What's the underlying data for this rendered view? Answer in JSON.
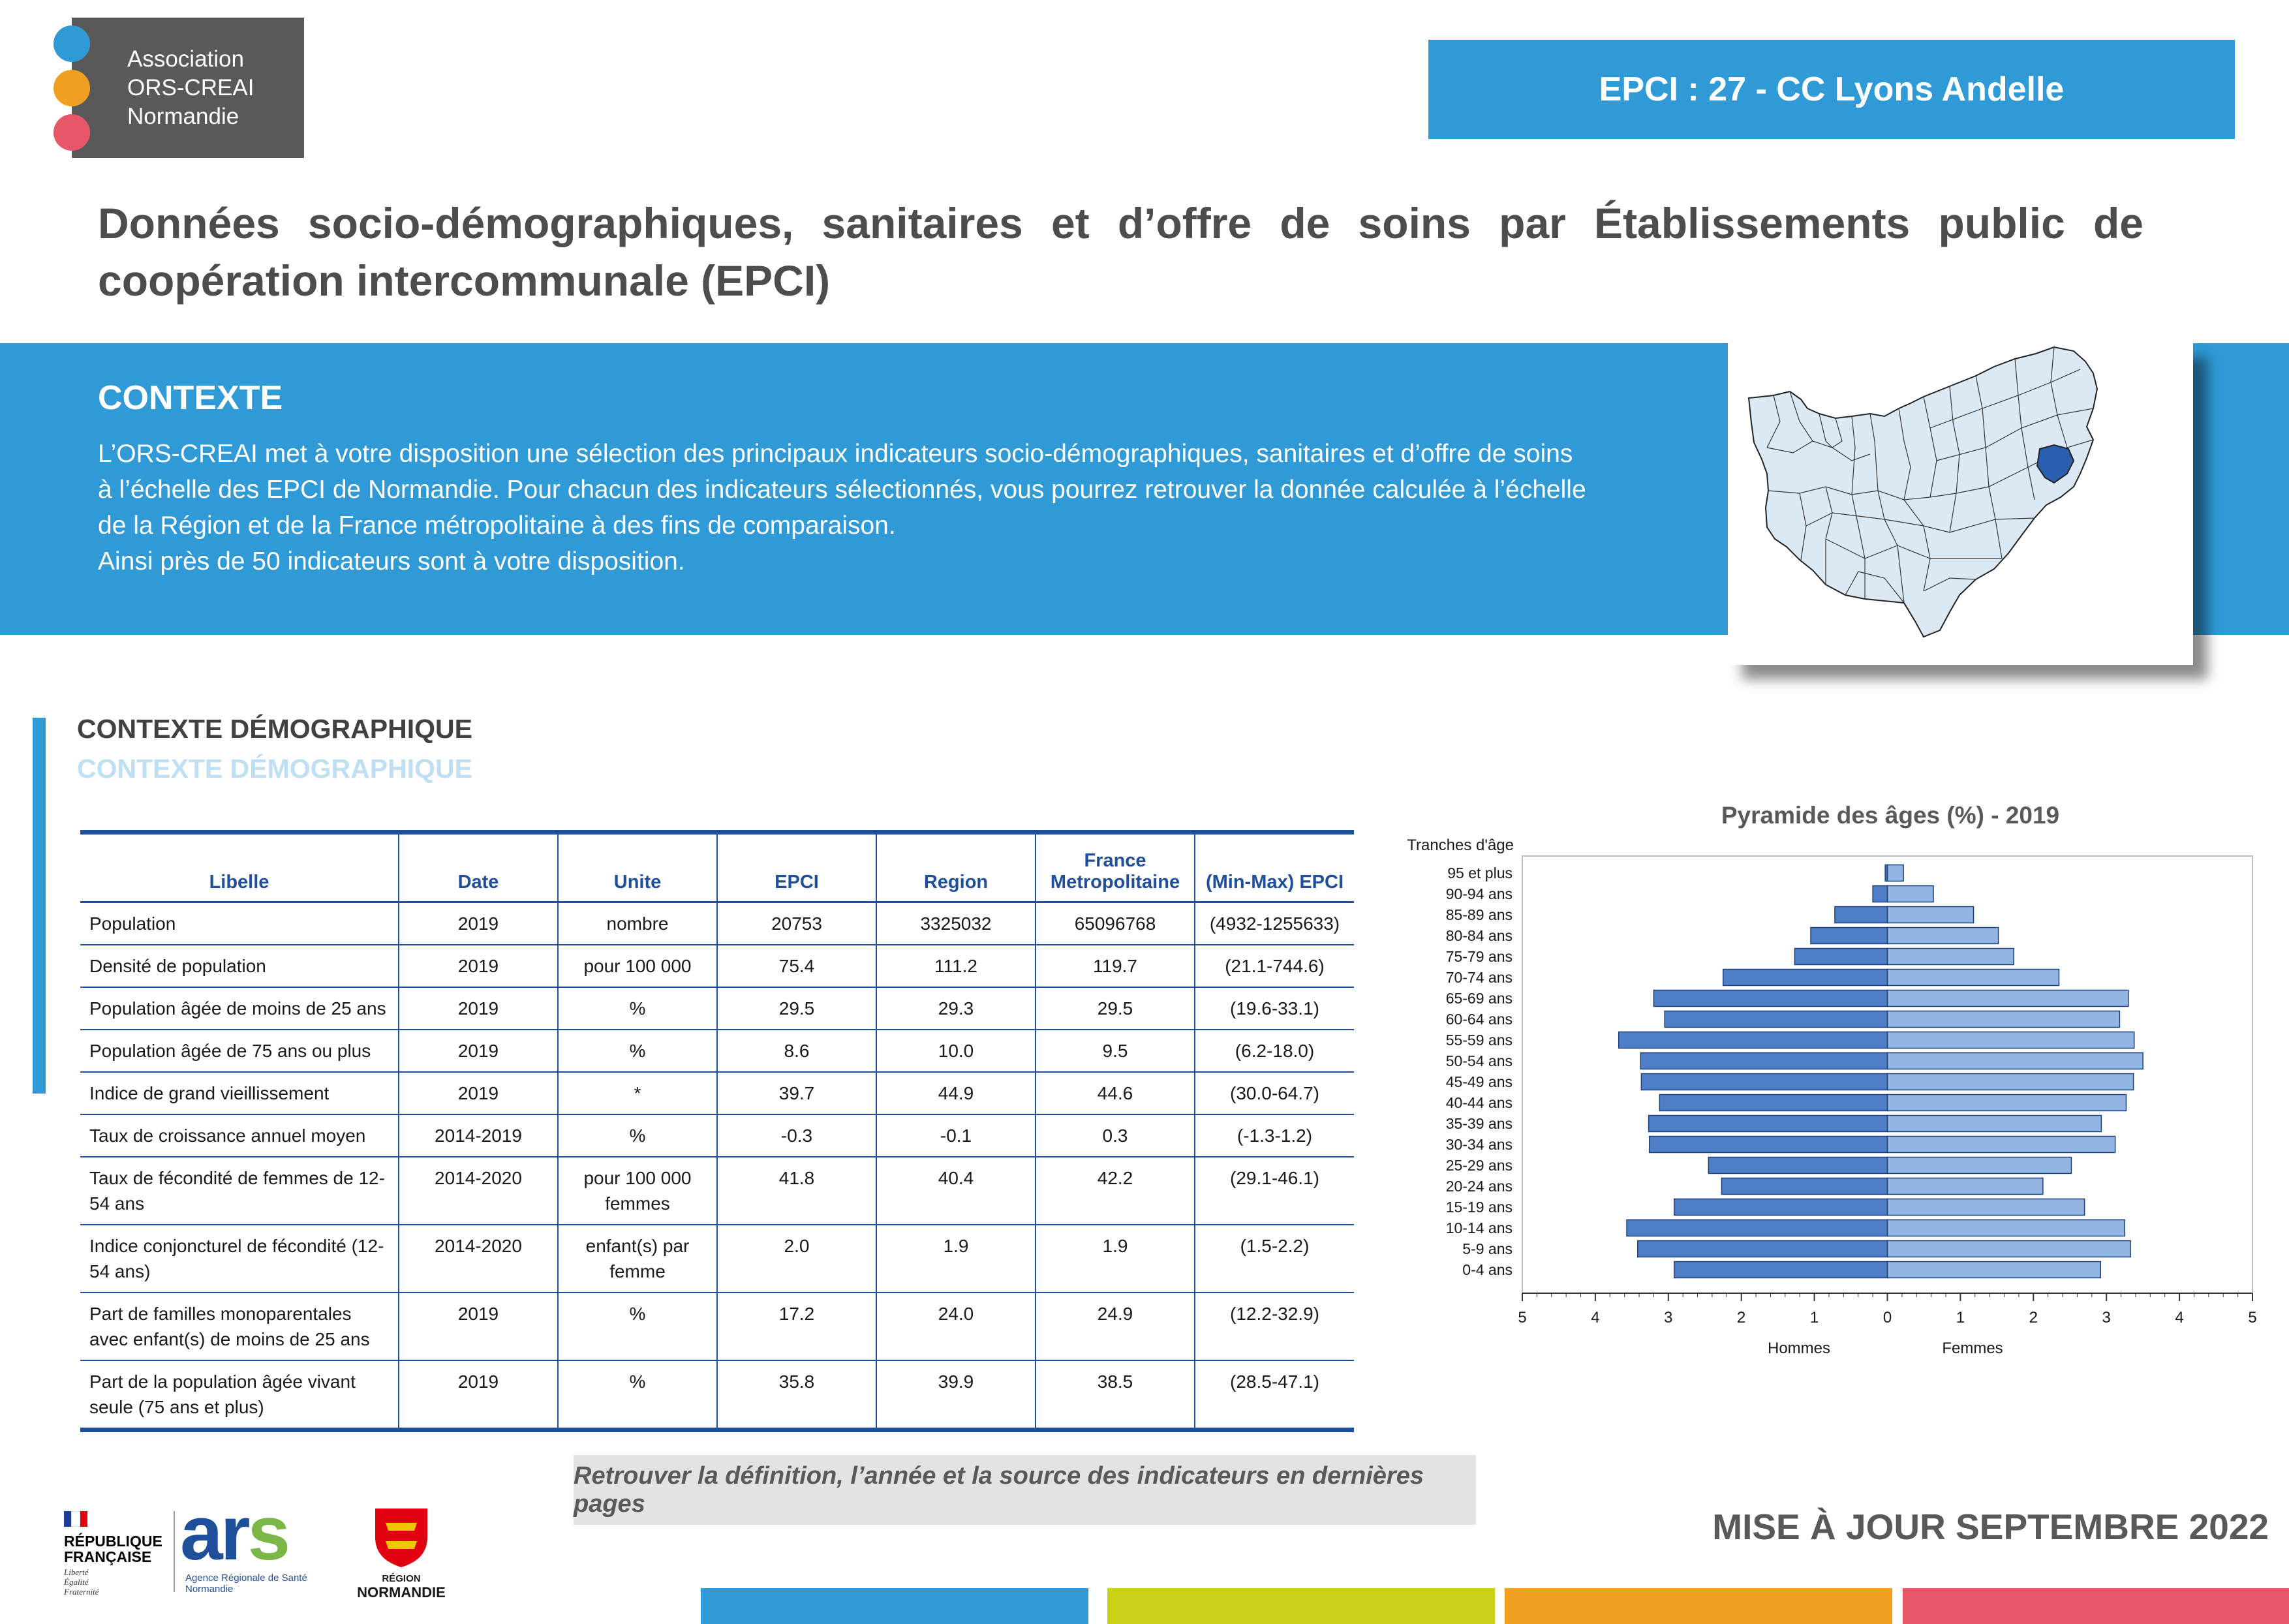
{
  "logo": {
    "lines": [
      "Association",
      "ORS-CREAI",
      "Normandie"
    ]
  },
  "epci_banner": "EPCI : 27 - CC Lyons Andelle",
  "title": "Données socio-démographiques, sanitaires et d’offre de soins par Établissements public de coopération intercommunale (EPCI)",
  "contexte": {
    "heading": "CONTEXTE",
    "lines": [
      "L’ORS-CREAI met à votre disposition une sélection des principaux indicateurs socio-démographiques, sanitaires et d’offre de soins",
      "à l’échelle des EPCI de Normandie. Pour chacun des indicateurs sélectionnés, vous pourrez retrouver la donnée calculée à l’échelle",
      "de la Région et de la France métropolitaine à des fins de comparaison.",
      "Ainsi près de 50 indicateurs sont à votre disposition."
    ]
  },
  "section": {
    "heading": "CONTEXTE DÉMOGRAPHIQUE",
    "heading_light": "CONTEXTE DÉMOGRAPHIQUE"
  },
  "table": {
    "headers": [
      "Libelle",
      "Date",
      "Unite",
      "EPCI",
      "Region",
      "France Metropolitaine",
      "(Min-Max) EPCI"
    ],
    "rows": [
      [
        "Population",
        "2019",
        "nombre",
        "20753",
        "3325032",
        "65096768",
        "(4932-1255633)"
      ],
      [
        "Densité de population",
        "2019",
        "pour 100 000",
        "75.4",
        "111.2",
        "119.7",
        "(21.1-744.6)"
      ],
      [
        "Population âgée de moins de 25 ans",
        "2019",
        "%",
        "29.5",
        "29.3",
        "29.5",
        "(19.6-33.1)"
      ],
      [
        "Population âgée de 75 ans ou plus",
        "2019",
        "%",
        "8.6",
        "10.0",
        "9.5",
        "(6.2-18.0)"
      ],
      [
        "Indice de grand vieillissement",
        "2019",
        "*",
        "39.7",
        "44.9",
        "44.6",
        "(30.0-64.7)"
      ],
      [
        "Taux de croissance annuel moyen",
        "2014-2019",
        "%",
        "-0.3",
        "-0.1",
        "0.3",
        "(-1.3-1.2)"
      ],
      [
        "Taux de fécondité de femmes de 12-54 ans",
        "2014-2020",
        "pour 100 000 femmes",
        "41.8",
        "40.4",
        "42.2",
        "(29.1-46.1)"
      ],
      [
        "Indice conjoncturel de fécondité (12-54 ans)",
        "2014-2020",
        "enfant(s) par femme",
        "2.0",
        "1.9",
        "1.9",
        "(1.5-2.2)"
      ],
      [
        "Part de familles monoparentales avec enfant(s) de moins de 25 ans",
        "2019",
        "%",
        "17.2",
        "24.0",
        "24.9",
        "(12.2-32.9)"
      ],
      [
        "Part de la population âgée vivant seule (75 ans et plus)",
        "2019",
        "%",
        "35.8",
        "39.9",
        "38.5",
        "(28.5-47.1)"
      ]
    ]
  },
  "chart_data": {
    "type": "bar",
    "orientation": "horizontal",
    "title": "Pyramide des âges (%) - 2019",
    "category_axis_title": "Tranches d'âge",
    "categories": [
      "95 et plus",
      "90-94 ans",
      "85-89 ans",
      "80-84 ans",
      "75-79 ans",
      "70-74 ans",
      "65-69 ans",
      "60-64 ans",
      "55-59 ans",
      "50-54 ans",
      "45-49 ans",
      "40-44 ans",
      "35-39 ans",
      "30-34 ans",
      "25-29 ans",
      "20-24 ans",
      "15-19 ans",
      "10-14 ans",
      "5-9 ans",
      "0-4 ans"
    ],
    "series": [
      {
        "name": "Hommes",
        "color": "#4f7fc7",
        "values": [
          0.03,
          0.2,
          0.72,
          1.05,
          1.27,
          2.25,
          3.2,
          3.05,
          3.68,
          3.38,
          3.37,
          3.12,
          3.27,
          3.26,
          2.45,
          2.27,
          2.92,
          3.57,
          3.42,
          2.92
        ]
      },
      {
        "name": "Femmes",
        "color": "#93b5e3",
        "values": [
          0.22,
          0.63,
          1.18,
          1.52,
          1.73,
          2.35,
          3.3,
          3.18,
          3.38,
          3.5,
          3.37,
          3.27,
          2.93,
          3.12,
          2.52,
          2.13,
          2.7,
          3.25,
          3.33,
          2.92
        ]
      }
    ],
    "x_ticks": [
      "5",
      "4",
      "3",
      "2",
      "1",
      "0",
      "1",
      "2",
      "3",
      "4",
      "5"
    ],
    "xlim": [
      -5,
      5
    ],
    "xlabels": [
      "Hommes",
      "Femmes"
    ]
  },
  "footer": {
    "note": "Retrouver la définition, l’année et la source des indicateurs en dernières pages",
    "update": "MISE À JOUR SEPTEMBRE 2022",
    "rf_lines": [
      "RÉPUBLIQUE",
      "FRANÇAISE"
    ],
    "rf_motto": [
      "Liberté",
      "Égalité",
      "Fraternité"
    ],
    "ars_brand": "ars",
    "ars_sub": [
      "Agence Régionale de Santé",
      "Normandie"
    ],
    "region_lines": [
      "RÉGION",
      "NORMANDIE"
    ]
  },
  "colors": {
    "blue": "#2f9ad6",
    "green": "#c8d217",
    "orange": "#f0a020",
    "red": "#e8566a",
    "table_blue": "#1f4e9a"
  }
}
